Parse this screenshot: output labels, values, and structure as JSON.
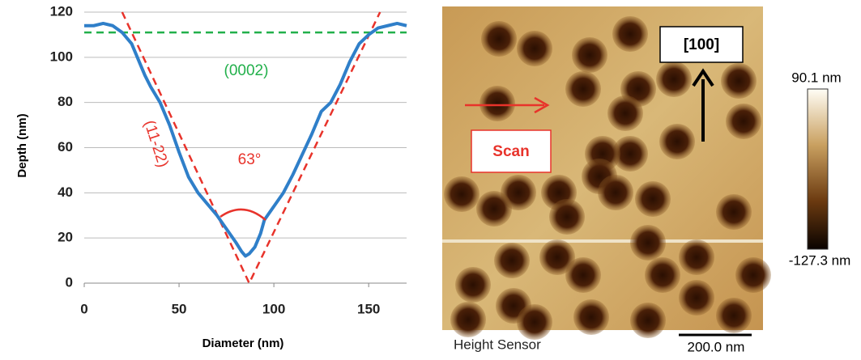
{
  "chart_data": {
    "type": "line",
    "y_label": "Depth (nm)",
    "x_label": "Diameter (nm)",
    "x": [
      0,
      5,
      10,
      15,
      20,
      25,
      28,
      32,
      35,
      40,
      45,
      50,
      55,
      60,
      65,
      70,
      75,
      80,
      83,
      85,
      87,
      90,
      93,
      95,
      100,
      105,
      110,
      115,
      120,
      125,
      130,
      135,
      140,
      145,
      150,
      155,
      160,
      165,
      170
    ],
    "values": [
      114,
      114,
      115,
      114,
      111,
      106,
      100,
      92,
      87,
      80,
      70,
      58,
      47,
      40,
      35,
      30,
      24,
      18,
      14,
      12,
      13,
      16,
      22,
      28,
      34,
      40,
      48,
      57,
      66,
      76,
      80,
      88,
      98,
      106,
      110,
      113,
      114,
      115,
      114
    ],
    "color": "#2f7fc9",
    "xlim": [
      0,
      170
    ],
    "ylim": [
      0,
      120
    ],
    "xticks": [
      0,
      50,
      100,
      150
    ],
    "yticks": [
      0,
      20,
      40,
      60,
      80,
      100,
      120
    ],
    "grid": true,
    "guides": [
      {
        "x": [
          20,
          87,
          156
        ],
        "values": [
          120,
          0,
          120
        ],
        "color": "#e8332b"
      },
      {
        "x": [
          0,
          170
        ],
        "values": [
          111,
          111
        ],
        "color": "#22b04b"
      }
    ],
    "annotations": [
      {
        "text": "(0002)",
        "color": "#22b04b"
      },
      {
        "text": "(11-22)",
        "color": "#e8332b"
      },
      {
        "text": "63°",
        "color": "#e8332b"
      }
    ]
  },
  "image": {
    "direction": "[100]",
    "scan": "Scan",
    "caption": "Height Sensor",
    "scale_bar": "200.0 nm",
    "colorbar_max": "90.1 nm",
    "colorbar_min": "-127.3 nm"
  }
}
